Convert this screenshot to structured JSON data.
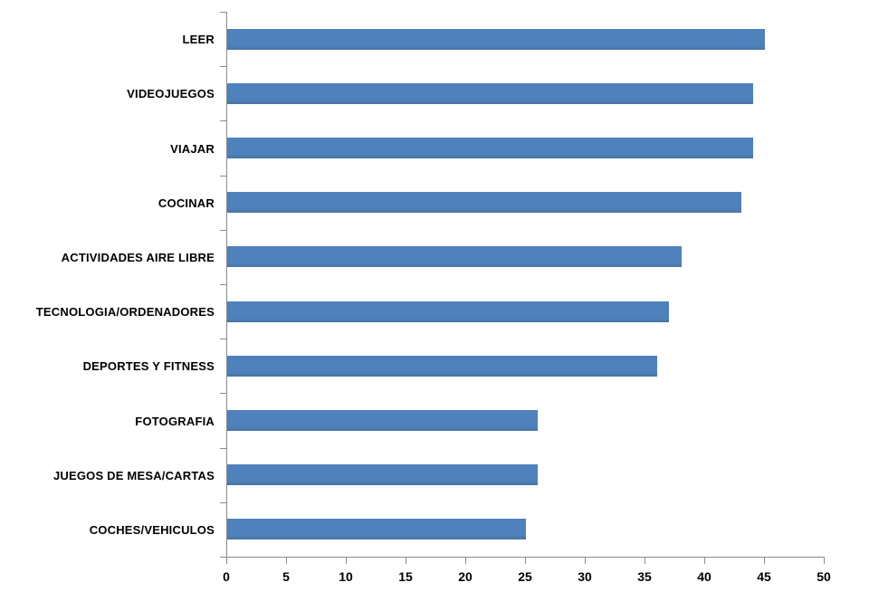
{
  "page": {
    "background_color": "#ffffff"
  },
  "chart_data": {
    "type": "bar",
    "orientation": "horizontal",
    "title": "",
    "xlabel": "",
    "ylabel": "",
    "categories": [
      "LEER",
      "VIDEOJUEGOS",
      "VIAJAR",
      "COCINAR",
      "ACTIVIDADES AIRE LIBRE",
      "TECNOLOGIA/ORDENADORES",
      "DEPORTES Y FITNESS",
      "FOTOGRAFIA",
      "JUEGOS DE MESA/CARTAS",
      "COCHES/VEHICULOS"
    ],
    "values": [
      45,
      44,
      44,
      43,
      38,
      37,
      36,
      26,
      26,
      25
    ],
    "xlim": [
      0,
      50
    ],
    "x_tick_step": 5,
    "x_tick_labels": [
      "0",
      "5",
      "10",
      "15",
      "20",
      "25",
      "30",
      "35",
      "40",
      "45",
      "50"
    ],
    "bar_color": "#4f81bd",
    "axis_color": "#8c8c8c",
    "text_color": "#000000",
    "grid": false,
    "legend": false
  }
}
